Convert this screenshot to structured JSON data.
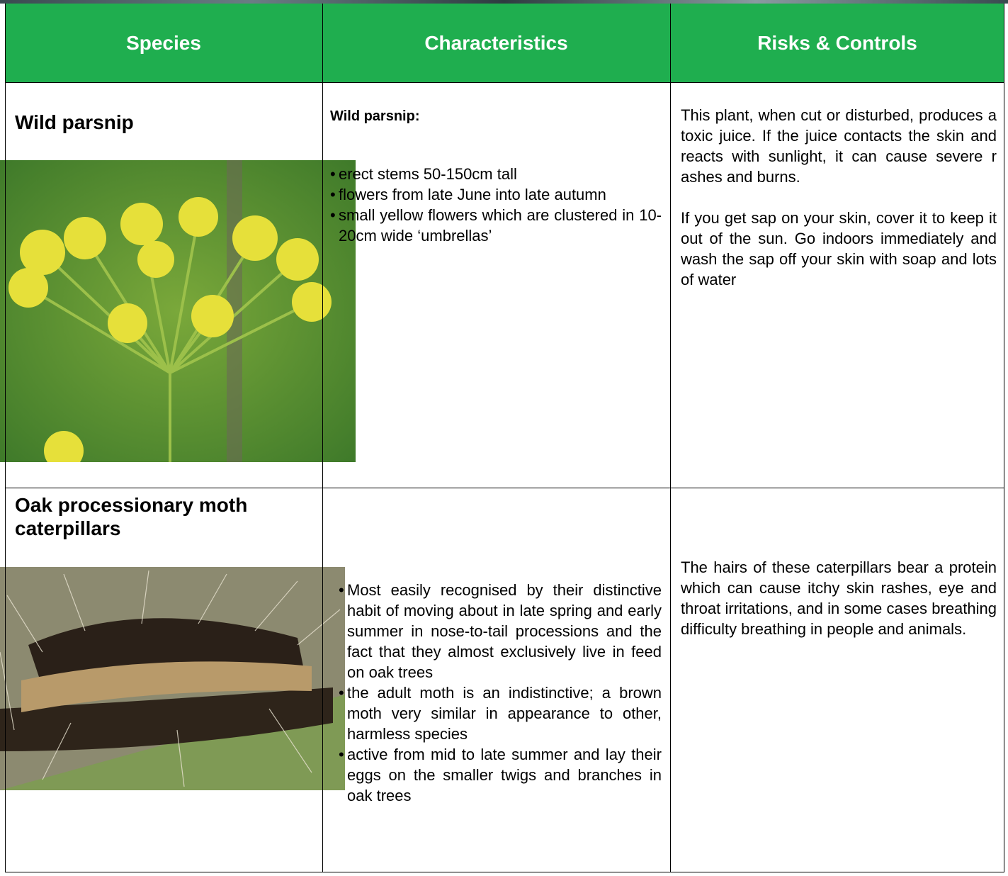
{
  "table": {
    "headers": [
      "Species",
      "Characteristics",
      "Risks & Controls"
    ],
    "rows": [
      {
        "species": "Wild parsnip",
        "characteristics": {
          "heading": "Wild parsnip:",
          "bullets": [
            "erect stems 50-150cm tall",
            "flowers from late June into late autumn",
            "small yellow flowers which are clustered in 10-20cm wide ‘umbrellas’"
          ]
        },
        "risks": [
          "This plant, when cut or disturbed, produces a toxic juice. If the juice contacts the skin and reacts with sunlight, it can cause severe r ashes and burns.",
          "If you get sap on your skin, cover it to keep it out of the sun. Go indoors immediately and wash the sap off your skin with soap and lots of water"
        ]
      },
      {
        "species": "Oak processionary moth caterpillars",
        "characteristics": {
          "bullets": [
            "Most easily recognised by their distinctive habit of moving about in late spring and early summer in nose-to-tail processions and the fact that they almost exclusively live in feed on oak trees",
            "the adult moth is an indistinctive; a brown moth very similar in appearance to other, harmless species",
            "active from mid to late summer and lay their eggs on the smaller twigs and branches in oak trees"
          ]
        },
        "risks": [
          "The hairs of these caterpillars bear a protein which can cause itchy skin rashes, eye and throat irritations, and in some cases breathing difficulty breathing in people and animals."
        ]
      }
    ]
  }
}
